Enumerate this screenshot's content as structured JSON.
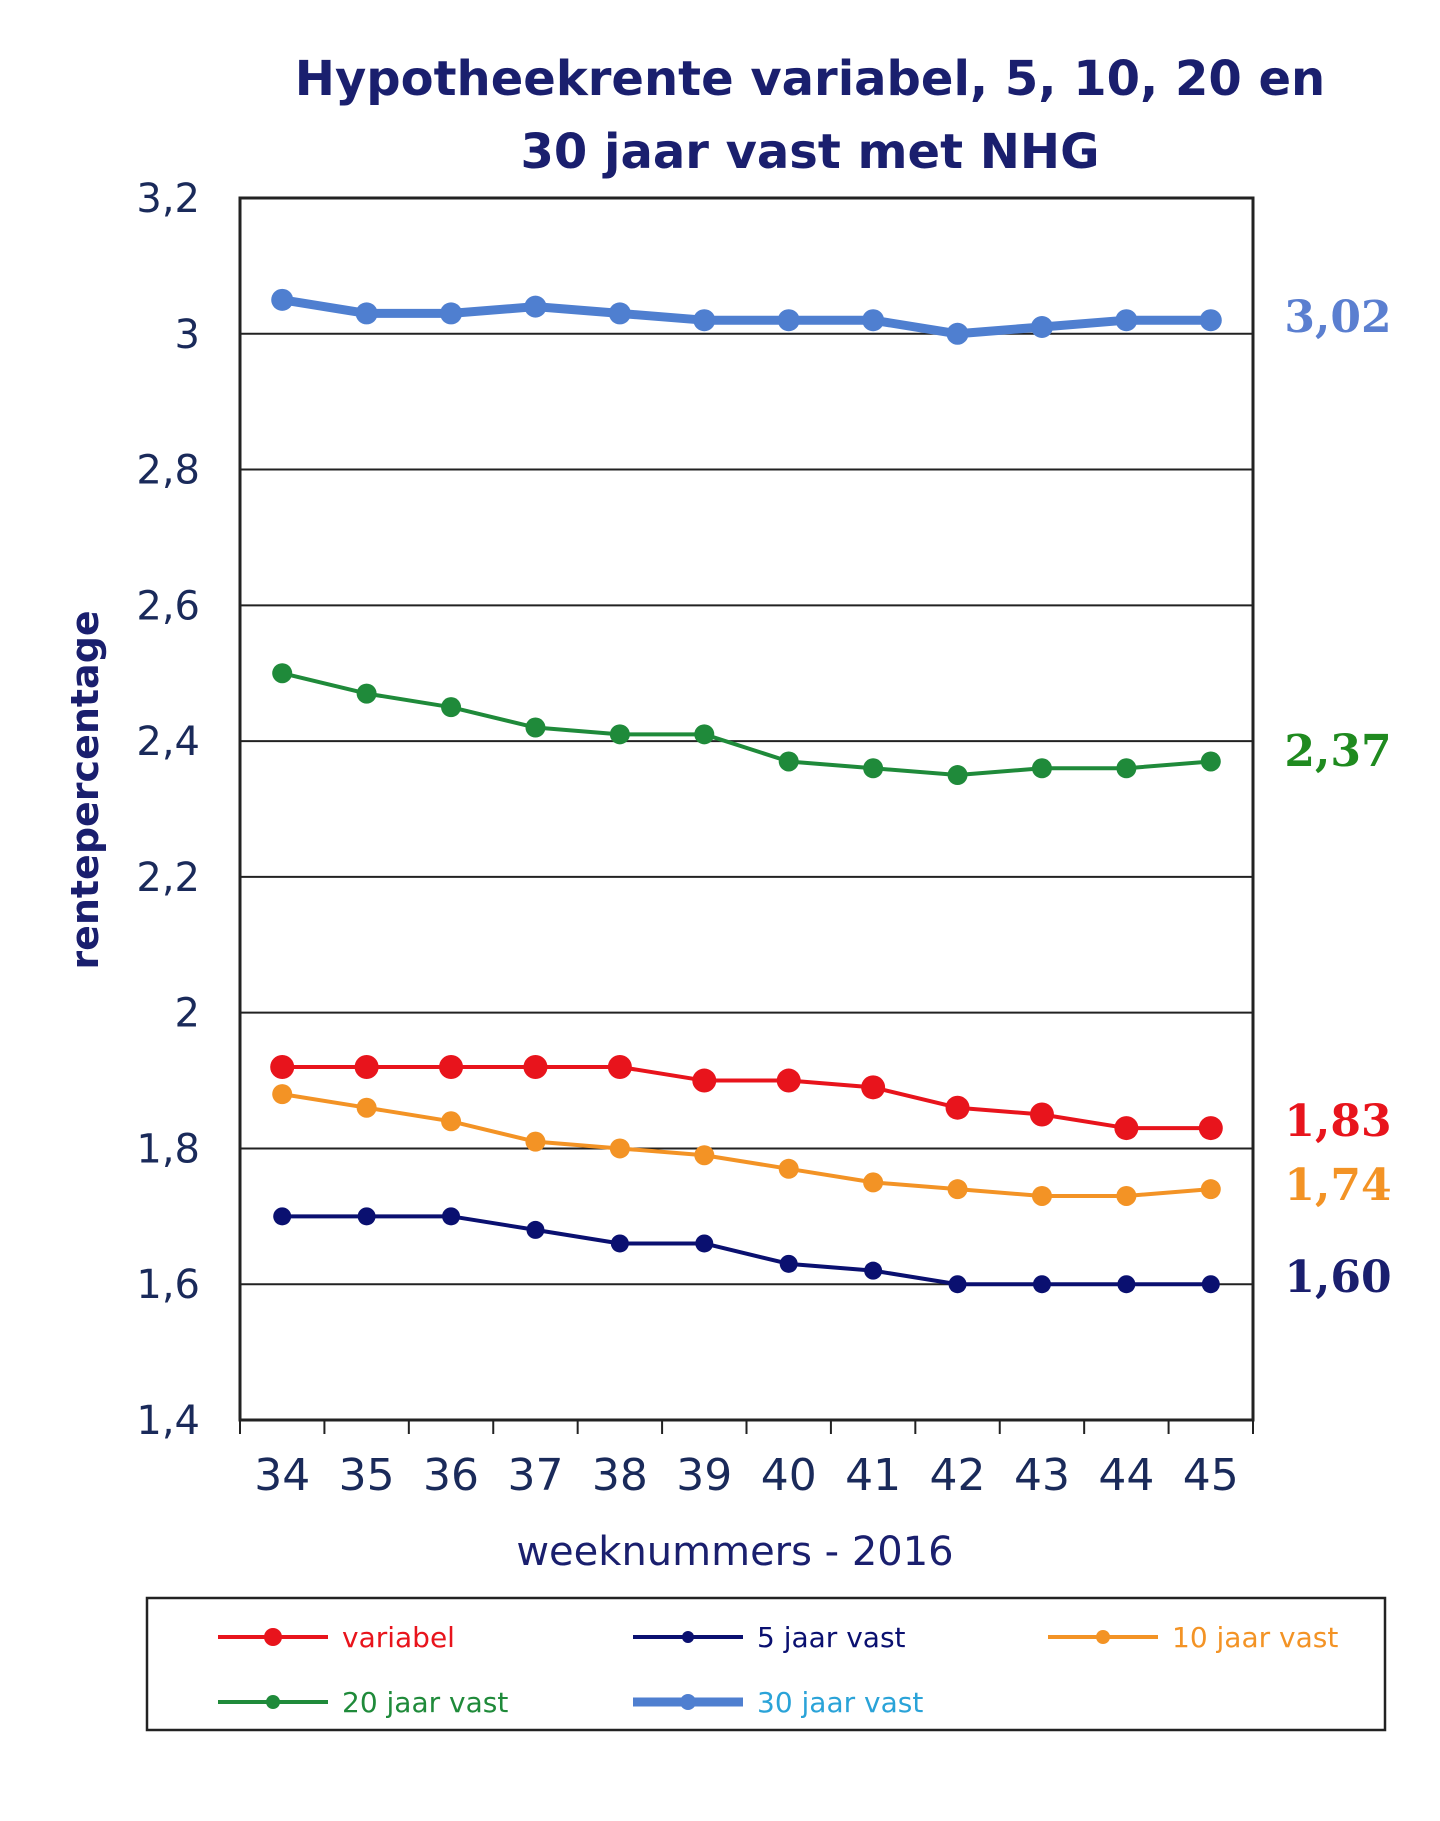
{
  "chart_data": {
    "type": "line",
    "title_line1": "Hypotheekrente variabel, 5, 10, 20 en",
    "title_line2": "30 jaar vast met NHG",
    "xlabel": "weeknummers - 2016",
    "ylabel": "rentepercentage",
    "x": [
      "34",
      "35",
      "36",
      "37",
      "38",
      "39",
      "40",
      "41",
      "42",
      "43",
      "44",
      "45"
    ],
    "ylim": [
      1.4,
      3.2
    ],
    "yticks": [
      "1,4",
      "1,6",
      "1,8",
      "2",
      "2,2",
      "2,4",
      "2,6",
      "2,8",
      "3",
      "3,2"
    ],
    "ytick_values": [
      1.4,
      1.6,
      1.8,
      2.0,
      2.2,
      2.4,
      2.6,
      2.8,
      3.0,
      3.2
    ],
    "grid": "horizontal",
    "legend_position": "bottom",
    "series": [
      {
        "name": "variabel",
        "color": "#e8141c",
        "values": [
          1.92,
          1.92,
          1.92,
          1.92,
          1.92,
          1.9,
          1.9,
          1.89,
          1.86,
          1.85,
          1.83,
          1.83
        ],
        "end_label": "1,83",
        "end_label_color": "#e8141c"
      },
      {
        "name": "5 jaar vast",
        "color": "#0a1070",
        "values": [
          1.7,
          1.7,
          1.7,
          1.68,
          1.66,
          1.66,
          1.63,
          1.62,
          1.6,
          1.6,
          1.6,
          1.6
        ],
        "end_label": "1,60",
        "end_label_color": "#1a1f6e"
      },
      {
        "name": "10 jaar vast",
        "color": "#f39325",
        "values": [
          1.88,
          1.86,
          1.84,
          1.81,
          1.8,
          1.79,
          1.77,
          1.75,
          1.74,
          1.73,
          1.73,
          1.74
        ],
        "end_label": "1,74",
        "end_label_color": "#f39325"
      },
      {
        "name": "20 jaar vast",
        "color": "#1f8a3a",
        "values": [
          2.5,
          2.47,
          2.45,
          2.42,
          2.41,
          2.41,
          2.37,
          2.36,
          2.35,
          2.36,
          2.36,
          2.37
        ],
        "end_label": "2,37",
        "end_label_color": "#1f8a1f"
      },
      {
        "name": "30 jaar vast",
        "color": "#4f7fd0",
        "values": [
          3.05,
          3.03,
          3.03,
          3.04,
          3.03,
          3.02,
          3.02,
          3.02,
          3.0,
          3.01,
          3.02,
          3.02
        ],
        "end_label": "3,02",
        "end_label_color": "#5b7fd0"
      }
    ],
    "legend_text_colors": [
      "#e8141c",
      "#0a1070",
      "#f39325",
      "#1f8a3a",
      "#2aa3d8"
    ]
  }
}
